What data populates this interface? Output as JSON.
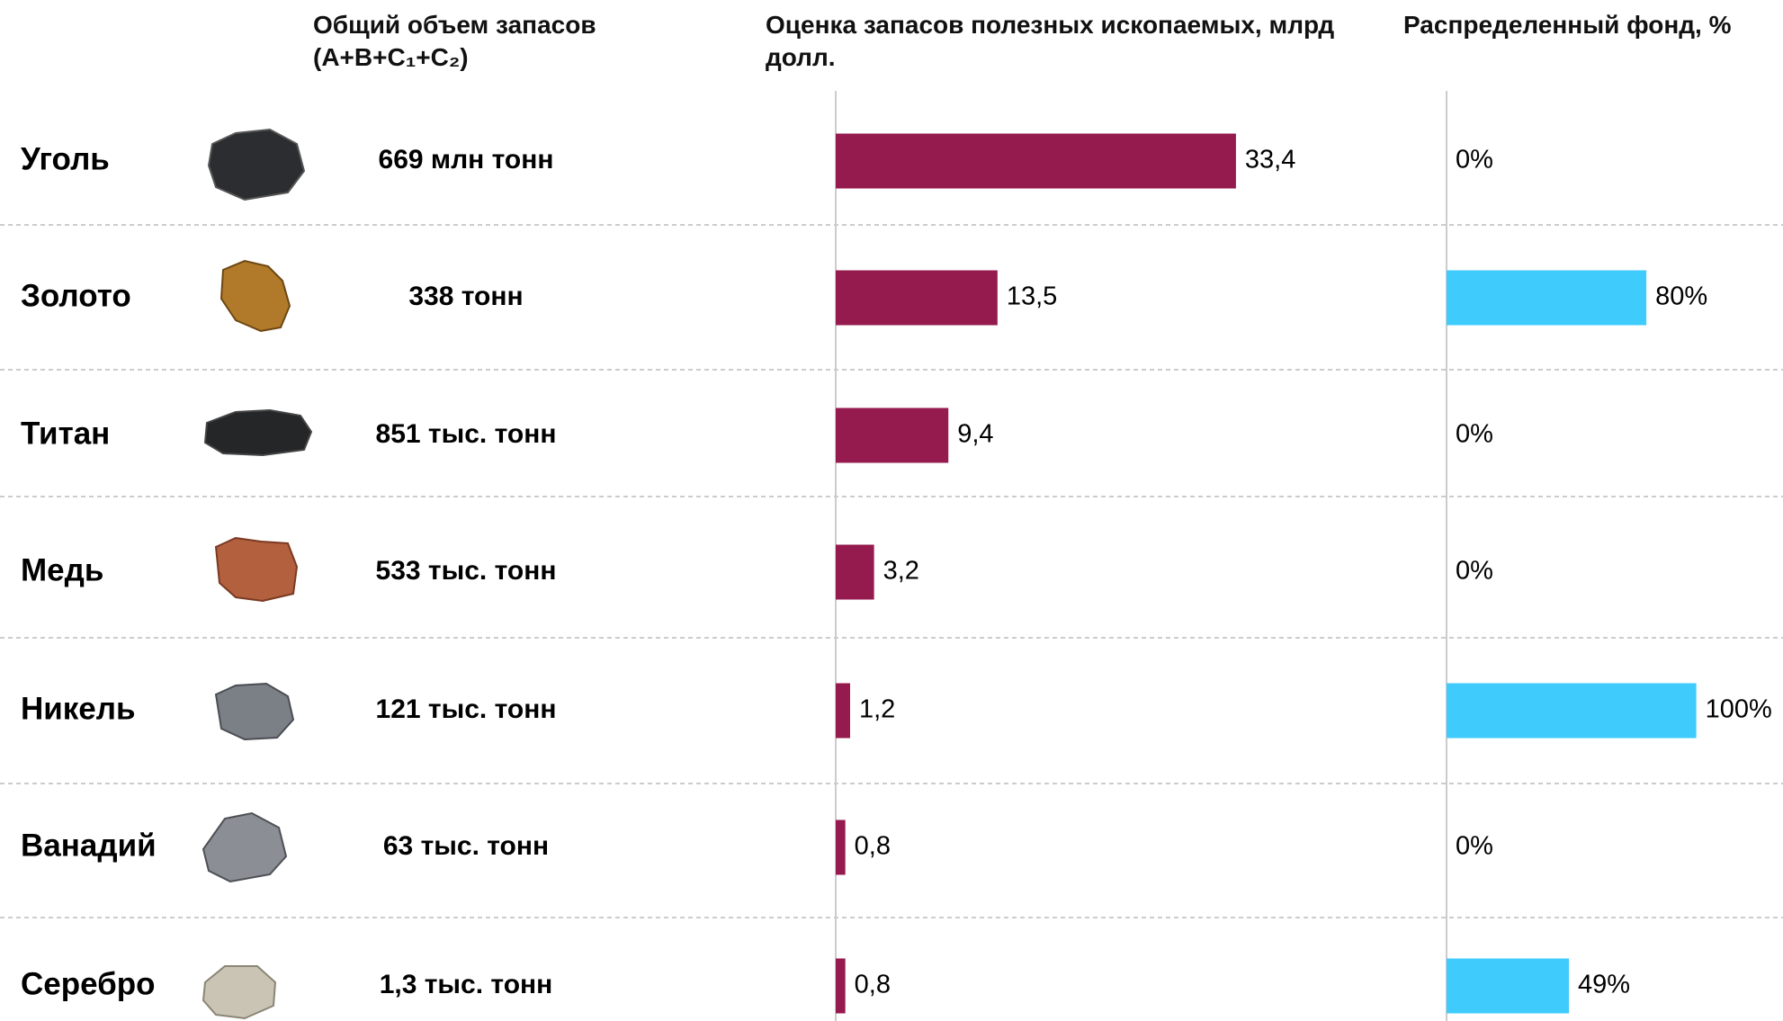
{
  "table": {
    "volume_header": "Общий объем запасов (A+B+C₁+C₂)",
    "rows": [
      {
        "name": "Уголь",
        "volume": "669 млн тонн"
      },
      {
        "name": "Золото",
        "volume": "338 тонн"
      },
      {
        "name": "Титан",
        "volume": "851 тыс. тонн"
      },
      {
        "name": "Медь",
        "volume": "533 тыс. тонн"
      },
      {
        "name": "Никель",
        "volume": "121 тыс. тонн"
      },
      {
        "name": "Ванадий",
        "volume": "63 тыс. тонн"
      },
      {
        "name": "Серебро",
        "volume": "1,3 тыс. тонн"
      }
    ]
  },
  "chart_data": [
    {
      "type": "bar",
      "orientation": "horizontal",
      "title": "Оценка запасов полезных ископаемых, млрд долл.",
      "values": [
        33.4,
        13.5,
        9.4,
        3.2,
        1.2,
        0.8,
        0.8
      ],
      "value_labels": [
        "33,4",
        "13,5",
        "9,4",
        "3,2",
        "1,2",
        "0,8",
        "0,8"
      ],
      "color": "#951a4e",
      "xlim": [
        0,
        50
      ]
    },
    {
      "type": "bar",
      "orientation": "horizontal",
      "title": "Распределенный фонд, %",
      "values": [
        0,
        80,
        0,
        0,
        100,
        0,
        49
      ],
      "value_labels": [
        "0%",
        "80%",
        "0%",
        "0%",
        "100%",
        "0%",
        "49%"
      ],
      "color": "#3fcbfc",
      "xlim": [
        0,
        134
      ]
    }
  ]
}
